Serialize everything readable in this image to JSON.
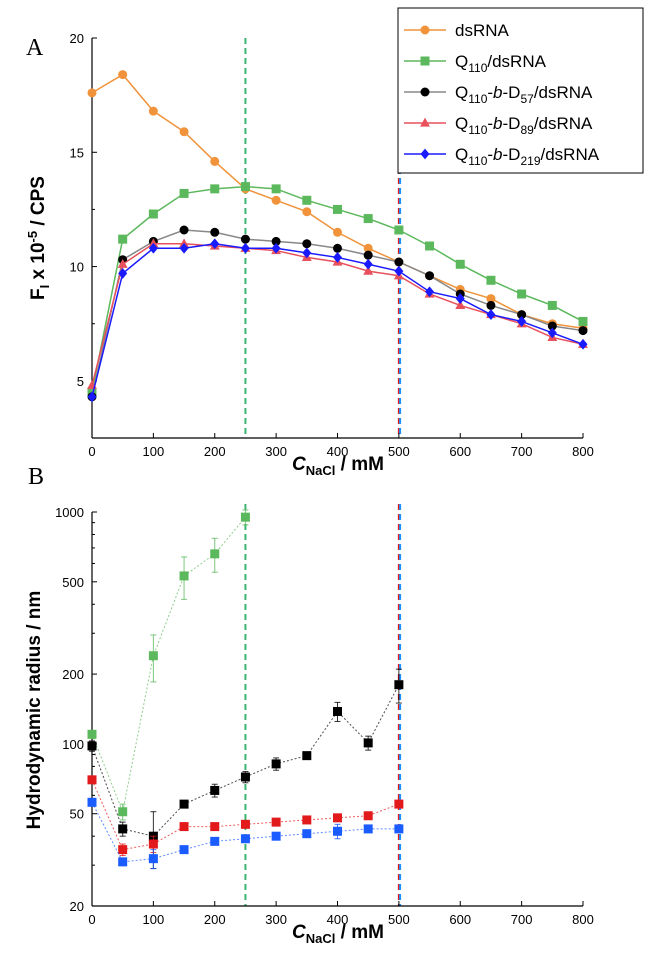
{
  "chart_data": [
    {
      "type": "line",
      "panel_label": "A",
      "xlabel": "C",
      "xlabel_sub": "NaCl",
      "xlabel_unit": " / mM",
      "ylabel": "F",
      "ylabel_sub": "I",
      "ylabel_mid": " x 10",
      "ylabel_sup": "-5",
      "ylabel_unit": " / CPS",
      "xlim": [
        0,
        800
      ],
      "ylim": [
        2.5,
        20
      ],
      "xticks": [
        "0",
        "100",
        "200",
        "300",
        "400",
        "500",
        "600",
        "700",
        "800"
      ],
      "yticks": [
        "5",
        "10",
        "15",
        "20"
      ],
      "vlines": [
        {
          "x": 250,
          "color": "#3cb371"
        },
        {
          "x": 500,
          "color": "#e31a1c"
        },
        {
          "x": 502,
          "color": "#1e90ff"
        }
      ],
      "x": [
        0,
        50,
        100,
        150,
        200,
        250,
        300,
        350,
        400,
        450,
        500,
        550,
        600,
        650,
        700,
        750,
        800
      ],
      "series": [
        {
          "name": "dsRNA",
          "color": "#f0933a",
          "marker": "circle",
          "values": [
            17.6,
            18.4,
            16.8,
            15.9,
            14.6,
            13.4,
            12.9,
            12.4,
            11.5,
            10.8,
            10.2,
            9.6,
            9.0,
            8.6,
            7.9,
            7.5,
            7.3
          ]
        },
        {
          "name": "Q110/dsRNA",
          "legend_parts": [
            "Q",
            "110",
            "/dsRNA"
          ],
          "color": "#5cb85c",
          "marker": "square",
          "values": [
            4.5,
            11.2,
            12.3,
            13.2,
            13.4,
            13.5,
            13.4,
            12.9,
            12.5,
            12.1,
            11.6,
            10.9,
            10.1,
            9.4,
            8.8,
            8.3,
            7.6
          ]
        },
        {
          "name": "Q110-b-D57/dsRNA",
          "legend_parts": [
            "Q",
            "110",
            "-b-D",
            "57",
            "/dsRNA"
          ],
          "color": "#000000",
          "line_color": "#888888",
          "marker": "circle",
          "values": [
            4.3,
            10.3,
            11.1,
            11.6,
            11.5,
            11.2,
            11.1,
            11.0,
            10.8,
            10.5,
            10.2,
            9.6,
            8.8,
            8.3,
            7.9,
            7.4,
            7.2
          ]
        },
        {
          "name": "Q110-b-D89/dsRNA",
          "legend_parts": [
            "Q",
            "110",
            "-b-D",
            "89",
            "/dsRNA"
          ],
          "color": "#e8505b",
          "marker": "triangle",
          "values": [
            4.8,
            10.1,
            11.0,
            11.0,
            10.9,
            10.8,
            10.7,
            10.4,
            10.2,
            9.8,
            9.6,
            8.8,
            8.3,
            7.9,
            7.5,
            6.9,
            6.6
          ]
        },
        {
          "name": "Q110-b-D219/dsRNA",
          "legend_parts": [
            "Q",
            "110",
            "-b-D",
            "219",
            "/dsRNA"
          ],
          "color": "#1a1aff",
          "marker": "diamond",
          "values": [
            4.3,
            9.7,
            10.8,
            10.8,
            11.0,
            10.8,
            10.8,
            10.6,
            10.4,
            10.1,
            9.8,
            8.9,
            8.6,
            7.9,
            7.6,
            7.1,
            6.6
          ]
        }
      ],
      "legend": "top-right",
      "grid": false
    },
    {
      "type": "scatter",
      "panel_label": "B",
      "xlabel": "C",
      "xlabel_sub": "NaCl",
      "xlabel_unit": " / mM",
      "ylabel": "Hydrodynamic radius / nm",
      "xlim": [
        0,
        800
      ],
      "ylim": [
        20,
        1000
      ],
      "yscale": "log",
      "xticks": [
        "0",
        "100",
        "200",
        "300",
        "400",
        "500",
        "600",
        "700",
        "800"
      ],
      "yticks": [
        "20",
        "50",
        "100",
        "200",
        "500",
        "1000"
      ],
      "vlines": [
        {
          "x": 250,
          "color": "#3cb371"
        },
        {
          "x": 500,
          "color": "#e31a1c"
        },
        {
          "x": 502,
          "color": "#1e90ff"
        }
      ],
      "series": [
        {
          "color": "#5cb85c",
          "x": [
            0,
            50,
            100,
            150,
            200,
            250
          ],
          "values": [
            110,
            51,
            240,
            530,
            660,
            950
          ],
          "errors": [
            0,
            4,
            55,
            110,
            110,
            70
          ]
        },
        {
          "color": "#000000",
          "x": [
            0,
            50,
            100,
            150,
            200,
            250,
            300,
            350,
            400,
            450,
            500
          ],
          "values": [
            98,
            43,
            40,
            55,
            63,
            72,
            82,
            89,
            138,
            101,
            180
          ],
          "errors": [
            5,
            3,
            11,
            2,
            4,
            4,
            5,
            3,
            13,
            7,
            30
          ]
        },
        {
          "color": "#e31a1c",
          "x": [
            0,
            50,
            100,
            150,
            200,
            250,
            300,
            350,
            400,
            450,
            500
          ],
          "values": [
            70,
            35,
            37,
            44,
            44,
            45,
            46,
            47,
            48,
            49,
            55
          ],
          "errors": [
            2,
            2,
            3,
            1,
            1,
            1,
            1,
            1,
            1,
            1,
            2
          ]
        },
        {
          "color": "#1a5cff",
          "x": [
            0,
            50,
            100,
            150,
            200,
            250,
            300,
            350,
            400,
            450,
            500
          ],
          "values": [
            56,
            31,
            32,
            35,
            38,
            39,
            40,
            41,
            42,
            43,
            43
          ],
          "errors": [
            2,
            1,
            3,
            1,
            1,
            1,
            1,
            1,
            3,
            1,
            1
          ]
        }
      ],
      "grid": false
    }
  ]
}
